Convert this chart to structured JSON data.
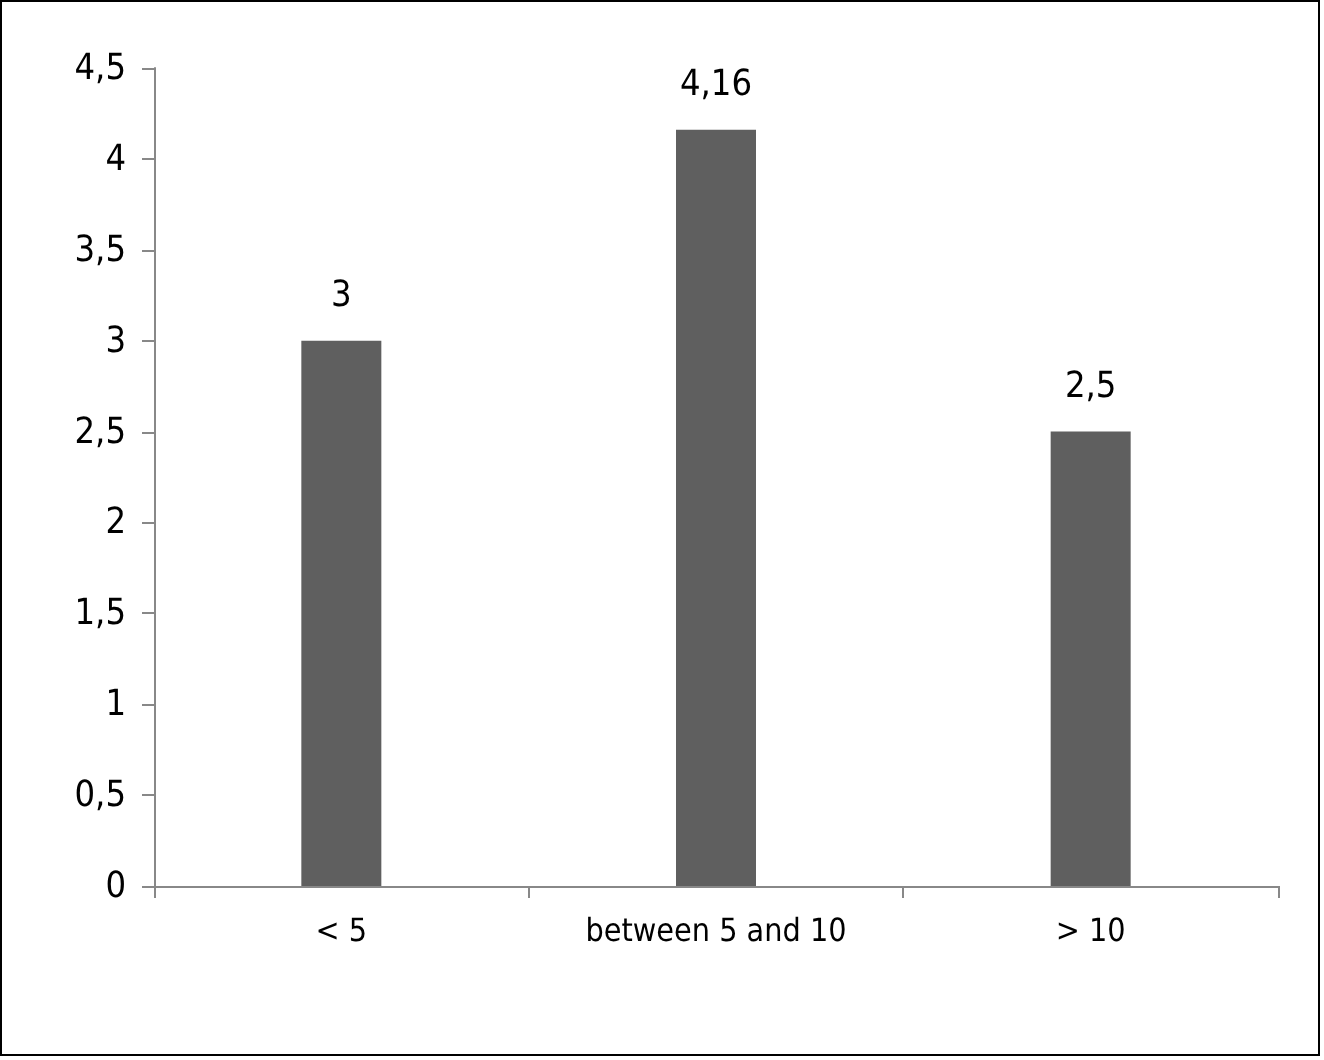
{
  "chart_data": {
    "type": "bar",
    "categories": [
      "< 5",
      "between 5 and 10",
      "> 10"
    ],
    "values": [
      3,
      4.16,
      2.5
    ],
    "color": "#5f5f5f",
    "value_labels": [
      "3",
      "4,16",
      "2,5"
    ],
    "ylim": [
      0,
      4.5
    ],
    "yticks": [
      0,
      {
        "value": 0.5,
        "label": "0,5"
      },
      1,
      {
        "value": 1.5,
        "label": "1,5"
      },
      2,
      {
        "value": 2.5,
        "label": "2,5"
      },
      3,
      {
        "value": 3.5,
        "label": "3,5"
      },
      4,
      {
        "value": 4.5,
        "label": "4,5"
      }
    ],
    "grid": false
  }
}
